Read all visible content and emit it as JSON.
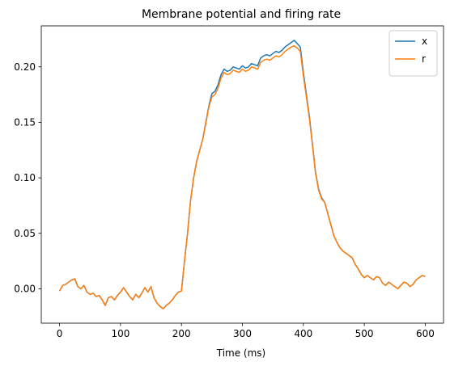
{
  "chart_data": {
    "type": "line",
    "title": "Membrane potential and firing rate",
    "xlabel": "Time (ms)",
    "ylabel": "",
    "xlim": [
      -30,
      630
    ],
    "ylim": [
      -0.031,
      0.237
    ],
    "xticks": [
      0,
      100,
      200,
      300,
      400,
      500,
      600
    ],
    "yticks": [
      0.0,
      0.05,
      0.1,
      0.15,
      0.2
    ],
    "ytick_labels": [
      "0.00",
      "0.05",
      "0.10",
      "0.15",
      "0.20"
    ],
    "legend_position": "top-right",
    "grid": false,
    "series": [
      {
        "name": "x",
        "color": "#1f77b4",
        "points": [
          [
            0,
            -0.002
          ],
          [
            5,
            0.003
          ],
          [
            10,
            0.004
          ],
          [
            15,
            0.006
          ],
          [
            20,
            0.008
          ],
          [
            25,
            0.009
          ],
          [
            30,
            0.002
          ],
          [
            35,
            0.0
          ],
          [
            40,
            0.003
          ],
          [
            45,
            -0.003
          ],
          [
            50,
            -0.005
          ],
          [
            55,
            -0.004
          ],
          [
            60,
            -0.007
          ],
          [
            65,
            -0.006
          ],
          [
            70,
            -0.01
          ],
          [
            75,
            -0.015
          ],
          [
            80,
            -0.008
          ],
          [
            85,
            -0.007
          ],
          [
            90,
            -0.01
          ],
          [
            95,
            -0.006
          ],
          [
            100,
            -0.003
          ],
          [
            105,
            0.001
          ],
          [
            110,
            -0.003
          ],
          [
            115,
            -0.007
          ],
          [
            120,
            -0.01
          ],
          [
            125,
            -0.005
          ],
          [
            130,
            -0.008
          ],
          [
            135,
            -0.004
          ],
          [
            140,
            0.001
          ],
          [
            145,
            -0.003
          ],
          [
            150,
            0.002
          ],
          [
            155,
            -0.008
          ],
          [
            160,
            -0.013
          ],
          [
            165,
            -0.016
          ],
          [
            170,
            -0.018
          ],
          [
            175,
            -0.015
          ],
          [
            180,
            -0.013
          ],
          [
            185,
            -0.01
          ],
          [
            190,
            -0.006
          ],
          [
            195,
            -0.003
          ],
          [
            200,
            -0.002
          ],
          [
            205,
            0.025
          ],
          [
            210,
            0.05
          ],
          [
            215,
            0.08
          ],
          [
            220,
            0.1
          ],
          [
            225,
            0.115
          ],
          [
            230,
            0.125
          ],
          [
            235,
            0.135
          ],
          [
            240,
            0.15
          ],
          [
            245,
            0.165
          ],
          [
            250,
            0.176
          ],
          [
            255,
            0.178
          ],
          [
            260,
            0.184
          ],
          [
            265,
            0.193
          ],
          [
            270,
            0.198
          ],
          [
            275,
            0.196
          ],
          [
            280,
            0.197
          ],
          [
            285,
            0.2
          ],
          [
            290,
            0.199
          ],
          [
            295,
            0.198
          ],
          [
            300,
            0.201
          ],
          [
            305,
            0.199
          ],
          [
            310,
            0.2
          ],
          [
            315,
            0.203
          ],
          [
            320,
            0.202
          ],
          [
            325,
            0.201
          ],
          [
            330,
            0.208
          ],
          [
            335,
            0.21
          ],
          [
            340,
            0.211
          ],
          [
            345,
            0.21
          ],
          [
            350,
            0.212
          ],
          [
            355,
            0.214
          ],
          [
            360,
            0.213
          ],
          [
            365,
            0.215
          ],
          [
            370,
            0.218
          ],
          [
            375,
            0.22
          ],
          [
            380,
            0.222
          ],
          [
            385,
            0.224
          ],
          [
            390,
            0.221
          ],
          [
            395,
            0.218
          ],
          [
            400,
            0.195
          ],
          [
            405,
            0.175
          ],
          [
            410,
            0.155
          ],
          [
            415,
            0.13
          ],
          [
            420,
            0.105
          ],
          [
            425,
            0.09
          ],
          [
            430,
            0.082
          ],
          [
            435,
            0.078
          ],
          [
            440,
            0.068
          ],
          [
            445,
            0.058
          ],
          [
            450,
            0.048
          ],
          [
            455,
            0.042
          ],
          [
            460,
            0.037
          ],
          [
            465,
            0.034
          ],
          [
            470,
            0.032
          ],
          [
            475,
            0.03
          ],
          [
            480,
            0.028
          ],
          [
            485,
            0.022
          ],
          [
            490,
            0.018
          ],
          [
            495,
            0.013
          ],
          [
            500,
            0.01
          ],
          [
            505,
            0.012
          ],
          [
            510,
            0.01
          ],
          [
            515,
            0.008
          ],
          [
            520,
            0.011
          ],
          [
            525,
            0.01
          ],
          [
            530,
            0.005
          ],
          [
            535,
            0.003
          ],
          [
            540,
            0.006
          ],
          [
            545,
            0.004
          ],
          [
            550,
            0.002
          ],
          [
            555,
            0.0
          ],
          [
            560,
            0.003
          ],
          [
            565,
            0.006
          ],
          [
            570,
            0.005
          ],
          [
            575,
            0.002
          ],
          [
            580,
            0.004
          ],
          [
            585,
            0.008
          ],
          [
            590,
            0.01
          ],
          [
            595,
            0.012
          ],
          [
            600,
            0.011
          ]
        ]
      },
      {
        "name": "r",
        "color": "#ff7f0e",
        "points": [
          [
            0,
            -0.002
          ],
          [
            5,
            0.003
          ],
          [
            10,
            0.004
          ],
          [
            15,
            0.006
          ],
          [
            20,
            0.008
          ],
          [
            25,
            0.009
          ],
          [
            30,
            0.002
          ],
          [
            35,
            0.0
          ],
          [
            40,
            0.003
          ],
          [
            45,
            -0.003
          ],
          [
            50,
            -0.005
          ],
          [
            55,
            -0.004
          ],
          [
            60,
            -0.007
          ],
          [
            65,
            -0.006
          ],
          [
            70,
            -0.01
          ],
          [
            75,
            -0.015
          ],
          [
            80,
            -0.008
          ],
          [
            85,
            -0.007
          ],
          [
            90,
            -0.01
          ],
          [
            95,
            -0.006
          ],
          [
            100,
            -0.003
          ],
          [
            105,
            0.001
          ],
          [
            110,
            -0.003
          ],
          [
            115,
            -0.007
          ],
          [
            120,
            -0.01
          ],
          [
            125,
            -0.005
          ],
          [
            130,
            -0.008
          ],
          [
            135,
            -0.004
          ],
          [
            140,
            0.001
          ],
          [
            145,
            -0.003
          ],
          [
            150,
            0.002
          ],
          [
            155,
            -0.008
          ],
          [
            160,
            -0.013
          ],
          [
            165,
            -0.016
          ],
          [
            170,
            -0.018
          ],
          [
            175,
            -0.015
          ],
          [
            180,
            -0.013
          ],
          [
            185,
            -0.01
          ],
          [
            190,
            -0.006
          ],
          [
            195,
            -0.003
          ],
          [
            200,
            -0.002
          ],
          [
            205,
            0.025
          ],
          [
            210,
            0.05
          ],
          [
            215,
            0.08
          ],
          [
            220,
            0.1
          ],
          [
            225,
            0.115
          ],
          [
            230,
            0.125
          ],
          [
            235,
            0.135
          ],
          [
            240,
            0.149
          ],
          [
            245,
            0.164
          ],
          [
            250,
            0.173
          ],
          [
            255,
            0.175
          ],
          [
            260,
            0.181
          ],
          [
            265,
            0.19
          ],
          [
            270,
            0.195
          ],
          [
            275,
            0.193
          ],
          [
            280,
            0.194
          ],
          [
            285,
            0.197
          ],
          [
            290,
            0.196
          ],
          [
            295,
            0.195
          ],
          [
            300,
            0.198
          ],
          [
            305,
            0.196
          ],
          [
            310,
            0.197
          ],
          [
            315,
            0.2
          ],
          [
            320,
            0.199
          ],
          [
            325,
            0.198
          ],
          [
            330,
            0.204
          ],
          [
            335,
            0.206
          ],
          [
            340,
            0.207
          ],
          [
            345,
            0.206
          ],
          [
            350,
            0.208
          ],
          [
            355,
            0.21
          ],
          [
            360,
            0.209
          ],
          [
            365,
            0.211
          ],
          [
            370,
            0.214
          ],
          [
            375,
            0.216
          ],
          [
            380,
            0.218
          ],
          [
            385,
            0.219
          ],
          [
            390,
            0.217
          ],
          [
            395,
            0.214
          ],
          [
            400,
            0.192
          ],
          [
            405,
            0.173
          ],
          [
            410,
            0.153
          ],
          [
            415,
            0.129
          ],
          [
            420,
            0.104
          ],
          [
            425,
            0.089
          ],
          [
            430,
            0.081
          ],
          [
            435,
            0.078
          ],
          [
            440,
            0.068
          ],
          [
            445,
            0.058
          ],
          [
            450,
            0.048
          ],
          [
            455,
            0.042
          ],
          [
            460,
            0.037
          ],
          [
            465,
            0.034
          ],
          [
            470,
            0.032
          ],
          [
            475,
            0.03
          ],
          [
            480,
            0.028
          ],
          [
            485,
            0.022
          ],
          [
            490,
            0.018
          ],
          [
            495,
            0.013
          ],
          [
            500,
            0.01
          ],
          [
            505,
            0.012
          ],
          [
            510,
            0.01
          ],
          [
            515,
            0.008
          ],
          [
            520,
            0.011
          ],
          [
            525,
            0.01
          ],
          [
            530,
            0.005
          ],
          [
            535,
            0.003
          ],
          [
            540,
            0.006
          ],
          [
            545,
            0.004
          ],
          [
            550,
            0.002
          ],
          [
            555,
            0.0
          ],
          [
            560,
            0.003
          ],
          [
            565,
            0.006
          ],
          [
            570,
            0.005
          ],
          [
            575,
            0.002
          ],
          [
            580,
            0.004
          ],
          [
            585,
            0.008
          ],
          [
            590,
            0.01
          ],
          [
            595,
            0.012
          ],
          [
            600,
            0.011
          ]
        ]
      }
    ]
  }
}
